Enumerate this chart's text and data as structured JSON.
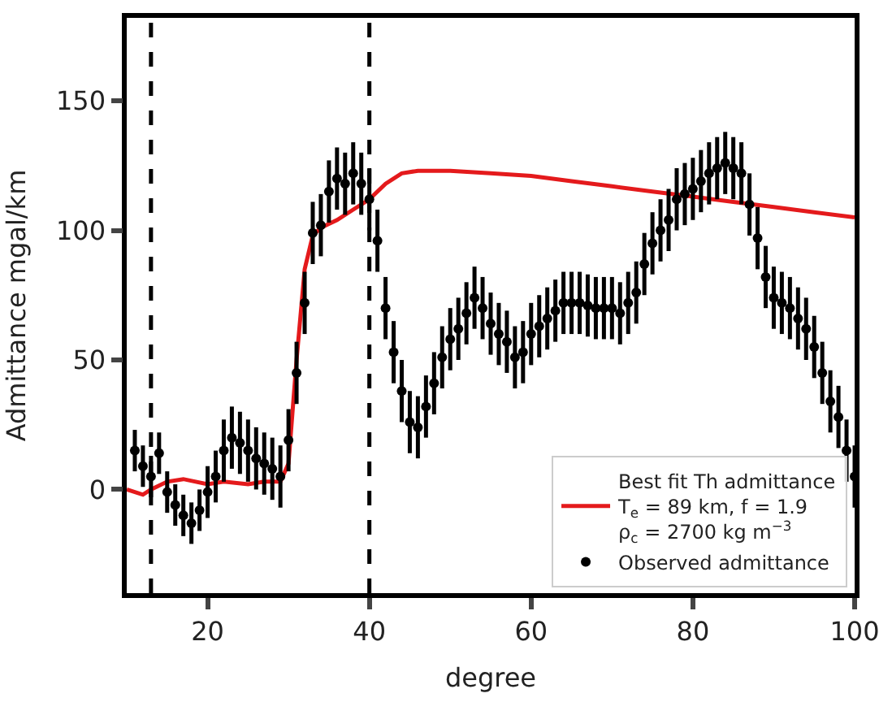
{
  "chart_data": {
    "type": "line",
    "xlabel": "degree",
    "ylabel": "Admittance mgal/km",
    "xlim": [
      10,
      100
    ],
    "ylim": [
      -40,
      182
    ],
    "xticks": [
      20,
      40,
      60,
      80,
      100
    ],
    "yticks": [
      0,
      50,
      100,
      150
    ],
    "legend": "bottom right",
    "ref_lines": [
      {
        "axis": "x",
        "value": 13,
        "color": "#000000",
        "line_style": "dashed"
      },
      {
        "axis": "x",
        "value": 40,
        "color": "#000000",
        "line_style": "dashed"
      }
    ],
    "series": [
      {
        "name": "Best fit Th admittance\nT$_{e}$ = 89 km, f = 1.9\nρ$_{c}$ = 2700 kg m$^{−3}$",
        "color": "#e41a1c",
        "marker": "none",
        "line_style": "solid",
        "x": [
          10,
          12,
          13,
          15,
          17,
          20,
          22,
          25,
          27,
          29,
          30,
          31,
          32,
          33,
          34,
          36,
          38,
          40,
          42,
          44,
          46,
          50,
          55,
          60,
          65,
          70,
          75,
          80,
          85,
          90,
          95,
          100
        ],
        "values": [
          0,
          -2,
          0,
          3,
          4,
          2,
          3,
          2,
          3,
          3,
          10,
          50,
          85,
          98,
          101,
          104,
          108,
          112,
          118,
          122,
          123,
          123,
          122,
          121,
          119,
          117,
          115,
          113,
          111,
          109,
          107,
          105
        ]
      },
      {
        "name": "Observed admittance",
        "type": "scatter",
        "color": "#000000",
        "marker": "circle",
        "x": [
          11,
          12,
          13,
          14,
          15,
          16,
          17,
          18,
          19,
          20,
          21,
          22,
          23,
          24,
          25,
          26,
          27,
          28,
          29,
          30,
          31,
          32,
          33,
          34,
          35,
          36,
          37,
          38,
          39,
          40,
          41,
          42,
          43,
          44,
          45,
          46,
          47,
          48,
          49,
          50,
          51,
          52,
          53,
          54,
          55,
          56,
          57,
          58,
          59,
          60,
          61,
          62,
          63,
          64,
          65,
          66,
          67,
          68,
          69,
          70,
          71,
          72,
          73,
          74,
          75,
          76,
          77,
          78,
          79,
          80,
          81,
          82,
          83,
          84,
          85,
          86,
          87,
          88,
          89,
          90,
          91,
          92,
          93,
          94,
          95,
          96,
          97,
          98,
          99,
          100
        ],
        "values": [
          15,
          9,
          5,
          14,
          -1,
          -6,
          -10,
          -13,
          -8,
          -1,
          5,
          15,
          20,
          18,
          15,
          12,
          10,
          8,
          5,
          19,
          45,
          72,
          99,
          102,
          115,
          120,
          118,
          122,
          118,
          112,
          96,
          70,
          53,
          38,
          26,
          24,
          32,
          41,
          51,
          58,
          62,
          68,
          74,
          70,
          64,
          60,
          57,
          51,
          53,
          60,
          63,
          66,
          69,
          72,
          72,
          72,
          71,
          70,
          70,
          70,
          68,
          72,
          76,
          87,
          95,
          100,
          104,
          112,
          114,
          116,
          119,
          122,
          124,
          126,
          124,
          122,
          110,
          97,
          82,
          74,
          72,
          70,
          66,
          62,
          55,
          45,
          34,
          28,
          15,
          5
        ],
        "errors": [
          8,
          8,
          8,
          8,
          8,
          8,
          8,
          8,
          8,
          10,
          10,
          12,
          12,
          12,
          12,
          12,
          12,
          12,
          12,
          12,
          12,
          12,
          12,
          12,
          12,
          12,
          12,
          12,
          12,
          12,
          12,
          12,
          12,
          12,
          12,
          12,
          12,
          12,
          12,
          12,
          12,
          12,
          12,
          12,
          12,
          12,
          12,
          12,
          12,
          12,
          12,
          12,
          12,
          12,
          12,
          12,
          12,
          12,
          12,
          12,
          12,
          12,
          12,
          12,
          12,
          12,
          12,
          12,
          12,
          12,
          12,
          12,
          12,
          12,
          12,
          12,
          12,
          12,
          12,
          12,
          12,
          12,
          12,
          12,
          12,
          12,
          12,
          12,
          12,
          12
        ]
      }
    ]
  }
}
